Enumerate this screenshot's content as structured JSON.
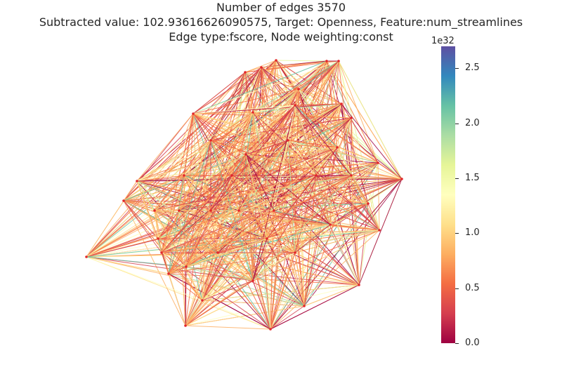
{
  "title": {
    "line1": "Number of edges 3570",
    "line2": "Subtracted value: 102.93616626090575, Target: Openness, Feature:num_streamlines",
    "line3": "Edge type:fscore, Node weighting:const"
  },
  "colorbar": {
    "exponent_label": "1e32",
    "ticks": [
      "0.0",
      "0.5",
      "1.0",
      "1.5",
      "2.0",
      "2.5"
    ],
    "tick_values": [
      0.0,
      0.5,
      1.0,
      1.5,
      2.0,
      2.5
    ],
    "max": 2.7,
    "colormap": "Spectral",
    "colors": [
      "#9e0142",
      "#d53e4f",
      "#f46d43",
      "#fdae61",
      "#fee08b",
      "#ffffbf",
      "#e6f598",
      "#abdda4",
      "#66c2a5",
      "#3288bd",
      "#5e4fa2"
    ]
  },
  "graph": {
    "edge_count": 3570,
    "node_color": "#e3262b"
  }
}
